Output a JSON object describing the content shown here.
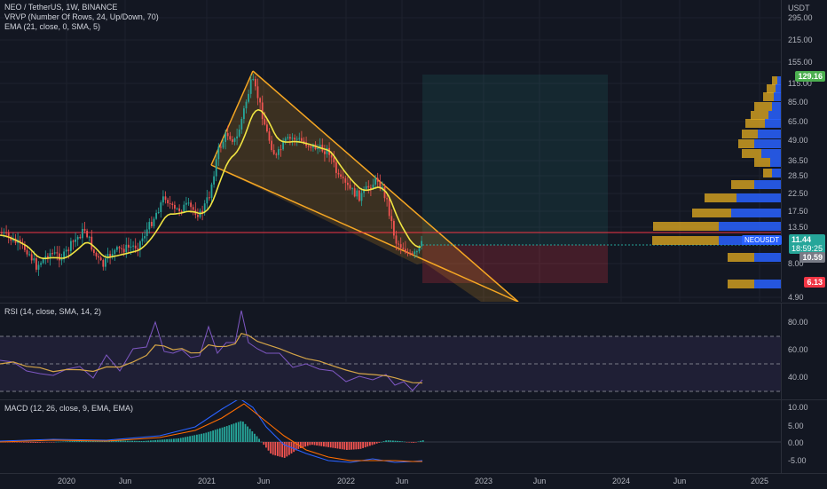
{
  "main_legend": {
    "symbol": "NEO / TetherUS, 1W, BINANCE",
    "vrvp": "VRVP (Number Of Rows, 24, Up/Down, 70)",
    "ema": "EMA (21, close, 0, SMA, 5)"
  },
  "rsi_legend": "RSI (14, close, SMA, 14, 2)",
  "macd_legend": "MACD (12, 26, close, 9, EMA, EMA)",
  "price_axis": {
    "unit": "USDT",
    "ticks": [
      "295.00",
      "215.00",
      "155.00",
      "115.00",
      "85.00",
      "65.00",
      "49.00",
      "36.50",
      "28.50",
      "22.50",
      "17.50",
      "13.50",
      "8.00",
      "4.90"
    ]
  },
  "price_tags": {
    "high": "129.16",
    "current": "11.44",
    "countdown": "18:59:25",
    "last": "10.59",
    "target": "6.13",
    "ticker": "NEOUSDT"
  },
  "rsi_axis": {
    "ticks": [
      "80.00",
      "60.00",
      "40.00"
    ]
  },
  "macd_axis": {
    "ticks": [
      "10.00",
      "5.00",
      "0.00",
      "-5.00"
    ]
  },
  "time_axis": {
    "labels": [
      "2020",
      "Jun",
      "2021",
      "Jun",
      "2022",
      "Jun",
      "2023",
      "Jun",
      "2024",
      "Jun",
      "2025"
    ]
  },
  "colors": {
    "up": "#26a69a",
    "down": "#ef5350",
    "ema": "#f0e442",
    "wedge": "#f5a623",
    "rsi": "#7e57c2",
    "rsi_ma": "#d4a447",
    "macd": "#2962ff",
    "signal": "#ff6d00",
    "hline": "#f23645"
  }
}
